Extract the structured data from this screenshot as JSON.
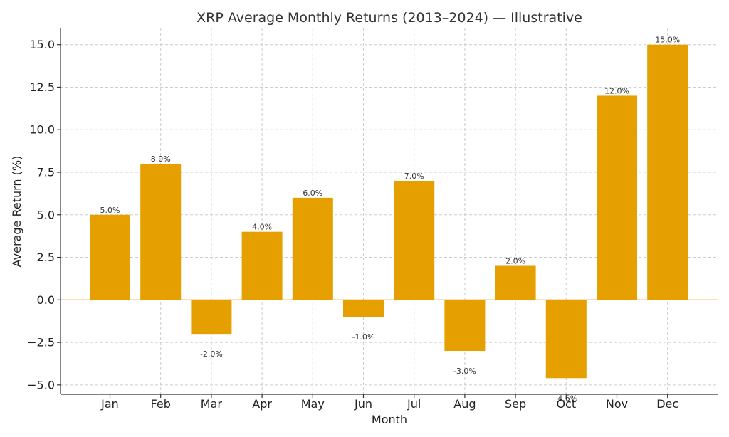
{
  "chart_data": {
    "type": "bar",
    "title": "XRP Average Monthly Returns (2013–2024) — Illustrative",
    "xlabel": "Month",
    "ylabel": "Average Return (%)",
    "categories": [
      "Jan",
      "Feb",
      "Mar",
      "Apr",
      "May",
      "Jun",
      "Jul",
      "Aug",
      "Sep",
      "Oct",
      "Nov",
      "Dec"
    ],
    "values": [
      5.0,
      8.0,
      -2.0,
      4.0,
      6.0,
      -1.0,
      7.0,
      -3.0,
      2.0,
      -4.6,
      12.0,
      15.0
    ],
    "data_labels": [
      "5.0%",
      "8.0%",
      "-2.0%",
      "4.0%",
      "6.0%",
      "-1.0%",
      "7.0%",
      "-3.0%",
      "2.0%",
      "-4.6%",
      "12.0%",
      "15.0%"
    ],
    "ylim": [
      -5.55,
      15.95
    ],
    "yticks": [
      -5.0,
      -2.5,
      0.0,
      2.5,
      5.0,
      7.5,
      10.0,
      12.5,
      15.0
    ],
    "ytick_labels": [
      "−5.0",
      "−2.5",
      "0.0",
      "2.5",
      "5.0",
      "7.5",
      "10.0",
      "12.5",
      "15.0"
    ],
    "grid": true,
    "bar_color": "#e5a000",
    "zero_line_color": "#f0b040"
  }
}
